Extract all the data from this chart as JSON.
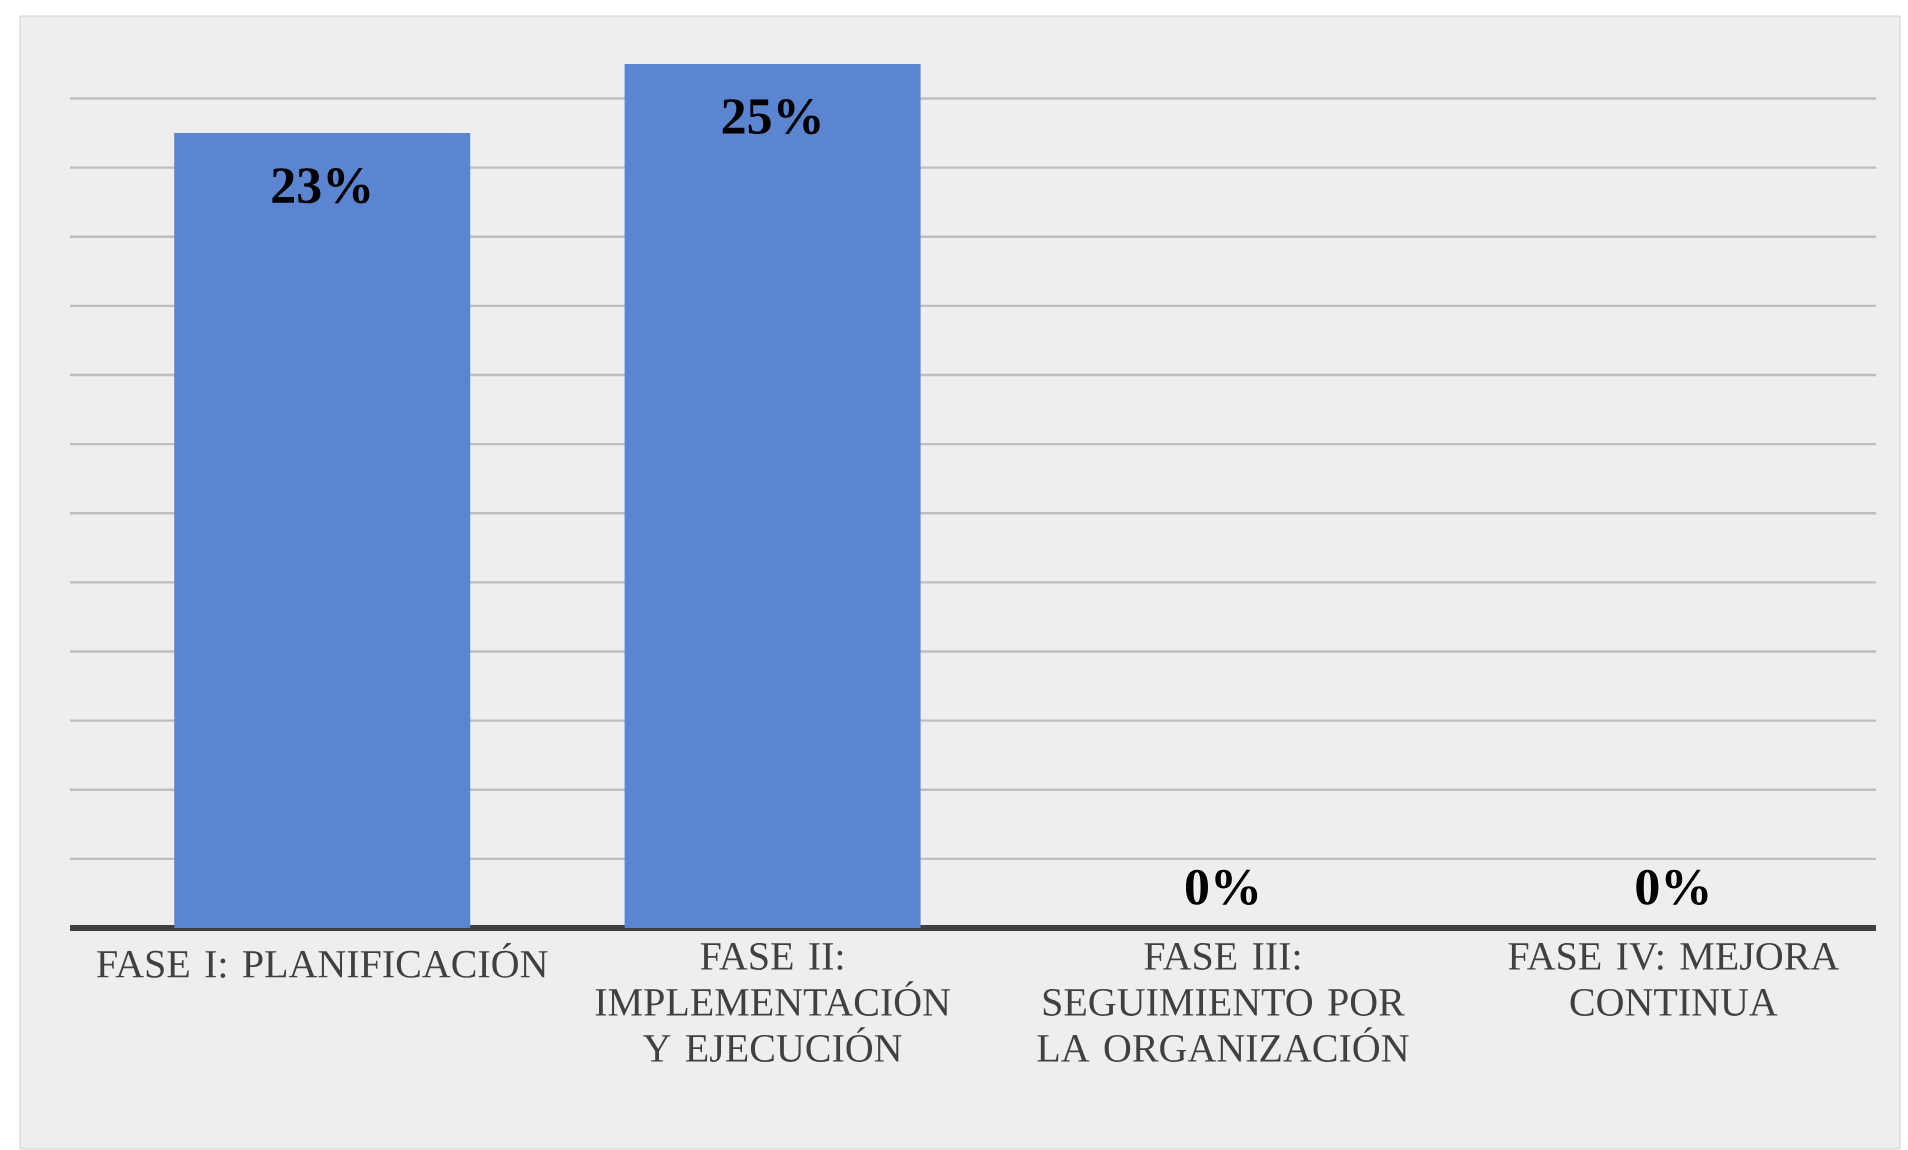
{
  "chart_data": {
    "type": "bar",
    "categories": [
      "FASE I: PLANIFICACIÓN",
      "FASE II: IMPLEMENTACIÓN Y EJECUCIÓN",
      "FASE III: SEGUIMIENTO POR LA ORGANIZACIÓN",
      "FASE IV: MEJORA CONTINUA"
    ],
    "values": [
      23,
      25,
      0,
      0
    ],
    "value_labels": [
      "23%",
      "25%",
      "0%",
      "0%"
    ],
    "color": "#5b85d0",
    "tick_labels": "x",
    "grid": "y"
  }
}
